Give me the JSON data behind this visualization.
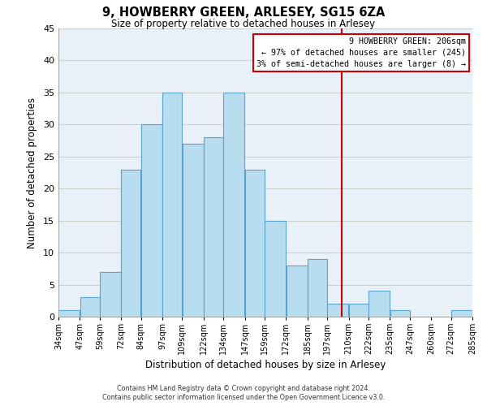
{
  "title": "9, HOWBERRY GREEN, ARLESEY, SG15 6ZA",
  "subtitle": "Size of property relative to detached houses in Arlesey",
  "xlabel": "Distribution of detached houses by size in Arlesey",
  "ylabel": "Number of detached properties",
  "bar_left_edges": [
    34,
    47,
    59,
    72,
    84,
    97,
    109,
    122,
    134,
    147,
    159,
    172,
    185,
    197,
    210,
    222,
    235,
    247,
    260,
    272
  ],
  "bar_widths": [
    13,
    12,
    13,
    12,
    13,
    12,
    13,
    12,
    13,
    12,
    13,
    13,
    12,
    13,
    12,
    13,
    12,
    13,
    12,
    13
  ],
  "bar_heights": [
    1,
    3,
    7,
    23,
    30,
    35,
    27,
    28,
    35,
    23,
    15,
    8,
    9,
    2,
    2,
    4,
    1,
    0,
    0,
    1
  ],
  "tick_labels": [
    "34sqm",
    "47sqm",
    "59sqm",
    "72sqm",
    "84sqm",
    "97sqm",
    "109sqm",
    "122sqm",
    "134sqm",
    "147sqm",
    "159sqm",
    "172sqm",
    "185sqm",
    "197sqm",
    "210sqm",
    "222sqm",
    "235sqm",
    "247sqm",
    "260sqm",
    "272sqm",
    "285sqm"
  ],
  "bar_color": "#b8ddf0",
  "bar_edge_color": "#5ba3c9",
  "grid_color": "#cccccc",
  "vline_x": 206,
  "vline_color": "#cc0000",
  "annotation_title": "9 HOWBERRY GREEN: 206sqm",
  "annotation_line1": "← 97% of detached houses are smaller (245)",
  "annotation_line2": "3% of semi-detached houses are larger (8) →",
  "annotation_box_color": "#cc0000",
  "annotation_bg": "#ffffff",
  "ylim": [
    0,
    45
  ],
  "yticks": [
    0,
    5,
    10,
    15,
    20,
    25,
    30,
    35,
    40,
    45
  ],
  "footer1": "Contains HM Land Registry data © Crown copyright and database right 2024.",
  "footer2": "Contains public sector information licensed under the Open Government Licence v3.0.",
  "fig_bg": "#ffffff",
  "plot_bg": "#e8f0f8"
}
